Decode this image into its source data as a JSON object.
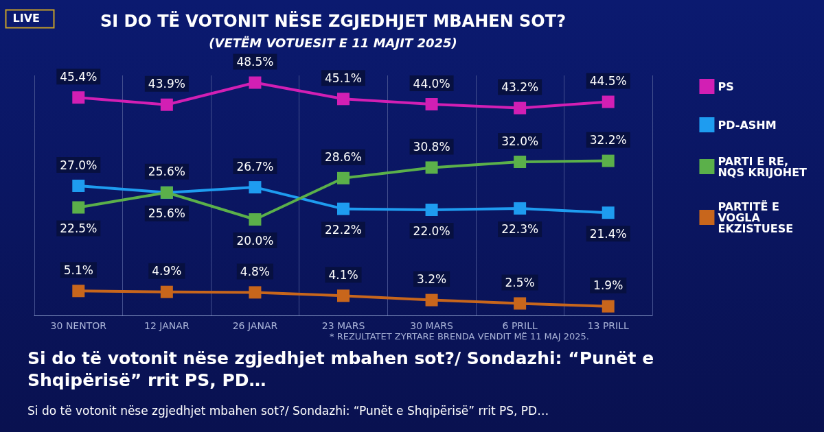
{
  "chart_data": {
    "type": "line",
    "title": "SI DO TË VOTONIT NËSE ZGJEDHJET MBAHEN SOT?",
    "subtitle": "(VETËM VOTUESIT E 11 MAJIT 2025)",
    "categories": [
      "30 NENTOR",
      "12 JANAR",
      "26 JANAR",
      "23 MARS",
      "30 MARS",
      "6 PRILL",
      "13 PRILL"
    ],
    "series": [
      {
        "name": "PS",
        "color": "#d21fb4",
        "values": [
          45.4,
          43.9,
          48.5,
          45.1,
          44.0,
          43.2,
          44.5
        ],
        "value_labels": [
          "45.4%",
          "43.9%",
          "48.5%",
          "45.1%",
          "44.0%",
          "43.2%",
          "44.5%"
        ]
      },
      {
        "name": "PD-ASHM",
        "color": "#1e9cf0",
        "values": [
          27.0,
          25.6,
          26.7,
          22.2,
          22.0,
          22.3,
          21.4
        ],
        "value_labels": [
          "27.0%",
          "25.6%",
          "26.7%",
          "22.2%",
          "22.0%",
          "22.3%",
          "21.4%"
        ]
      },
      {
        "name": "PARTI E RE, NQS KRIJOHET",
        "color": "#5bb04a",
        "values": [
          22.5,
          25.6,
          20.0,
          28.6,
          30.8,
          32.0,
          32.2
        ],
        "value_labels": [
          "22.5%",
          "25.6%",
          "20.0%",
          "28.6%",
          "30.8%",
          "32.0%",
          "32.2%"
        ]
      },
      {
        "name": "PARTITË E VOGLA EKZISTUESE",
        "color": "#c8661c",
        "values": [
          5.1,
          4.9,
          4.8,
          4.1,
          3.2,
          2.5,
          1.9
        ],
        "value_labels": [
          "5.1%",
          "4.9%",
          "4.8%",
          "4.1%",
          "3.2%",
          "2.5%",
          "1.9%"
        ]
      }
    ],
    "marker": "square",
    "line_style": "solid",
    "grid": "x",
    "legend": "right",
    "annotations": [
      "* REZULTATET ZYRTARE BRENDA VENDIT MË 11 MAJ 2025.",
      "Si do të votonit nëse zgjedhjet mbahen sot?/ Sondazhi: “Punët e Shqipërisë” rrit PS, PD…",
      "Si do të votonit nëse zgjedhjet mbahen sot?/ Sondazhi: “Punët e Shqipërisë” rrit PS, PD…",
      "LIVE"
    ]
  }
}
